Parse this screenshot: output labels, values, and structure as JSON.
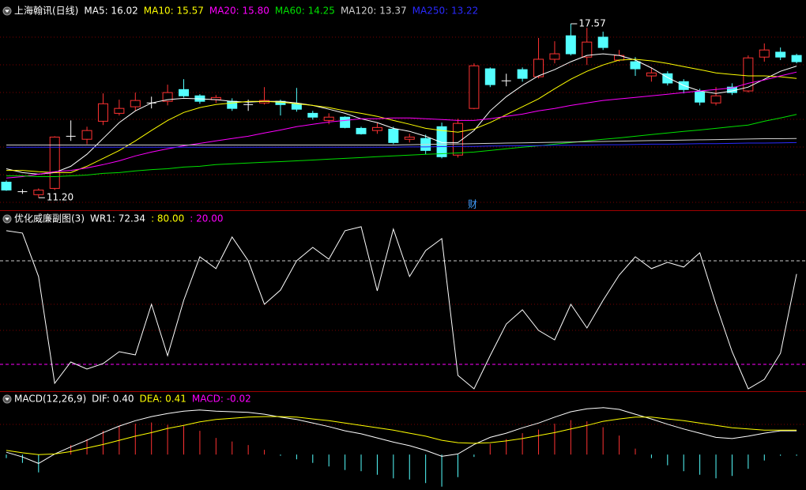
{
  "chart_data": [
    {
      "type": "candlestick",
      "title": "上海翰讯(日线)",
      "event_marker": "财",
      "ylim": [
        10.77,
        18.44
      ],
      "up_color": "#ff3232",
      "down_color": "#54ffff",
      "flat_color": "#ffffff",
      "open": [
        11.77,
        11.42,
        11.31,
        11.54,
        13.45,
        13.34,
        14.0,
        14.29,
        14.53,
        14.67,
        14.73,
        15.16,
        14.93,
        14.79,
        14.73,
        14.61,
        14.67,
        14.73,
        14.64,
        14.29,
        14.03,
        14.15,
        13.74,
        13.66,
        13.71,
        13.34,
        13.37,
        13.8,
        12.76,
        14.47,
        15.92,
        15.48,
        15.89,
        15.63,
        16.27,
        17.13,
        16.35,
        17.08,
        16.24,
        16.18,
        15.66,
        15.74,
        15.45,
        15.08,
        14.67,
        15.25,
        15.11,
        16.35,
        16.53,
        16.41
      ],
      "high": [
        11.83,
        11.51,
        11.54,
        13.45,
        14.03,
        13.8,
        15.02,
        14.79,
        15.05,
        14.9,
        15.34,
        15.54,
        14.99,
        14.96,
        14.84,
        14.79,
        15.25,
        14.79,
        15.22,
        14.38,
        14.29,
        14.18,
        13.8,
        13.95,
        13.8,
        13.54,
        13.51,
        13.95,
        14.09,
        16.12,
        15.97,
        15.74,
        15.97,
        17.05,
        16.93,
        17.57,
        17.42,
        17.28,
        16.61,
        16.35,
        15.97,
        15.83,
        15.54,
        15.19,
        15.25,
        15.39,
        16.41,
        16.85,
        16.7,
        16.47
      ],
      "low": [
        11.45,
        11.34,
        11.2,
        11.48,
        13.28,
        13.16,
        13.86,
        14.21,
        14.38,
        14.47,
        14.58,
        14.87,
        14.64,
        14.67,
        14.38,
        14.38,
        14.61,
        14.21,
        14.35,
        14.06,
        13.89,
        13.74,
        13.51,
        13.54,
        13.16,
        13.22,
        12.79,
        12.64,
        12.67,
        14.44,
        15.25,
        15.28,
        15.45,
        15.57,
        16.12,
        16.41,
        16.06,
        16.61,
        16.18,
        15.66,
        15.45,
        15.31,
        15.02,
        14.58,
        14.58,
        14.96,
        15.05,
        16.18,
        16.24,
        16.12
      ],
      "close": [
        11.48,
        11.42,
        11.48,
        13.42,
        13.45,
        13.66,
        14.64,
        14.47,
        14.76,
        14.67,
        15.05,
        14.93,
        14.73,
        14.87,
        14.47,
        14.61,
        14.76,
        14.61,
        14.44,
        14.15,
        14.15,
        13.77,
        13.54,
        13.77,
        13.22,
        13.42,
        12.93,
        12.7,
        13.92,
        16.03,
        15.34,
        15.48,
        15.57,
        16.27,
        16.47,
        16.47,
        16.9,
        16.7,
        16.41,
        15.92,
        15.77,
        15.4,
        15.16,
        14.7,
        14.93,
        15.05,
        16.32,
        16.61,
        16.35,
        16.18
      ],
      "annotations": [
        {
          "value": 17.57,
          "label": "17.57"
        },
        {
          "value": 11.2,
          "label": "11.20"
        }
      ],
      "series": [
        {
          "name": "MA5: 16.02",
          "color": "#ffffff",
          "values": [
            12.26,
            12.12,
            12.06,
            12.12,
            12.35,
            12.79,
            13.37,
            13.95,
            14.38,
            14.67,
            14.79,
            14.84,
            14.82,
            14.79,
            14.73,
            14.7,
            14.73,
            14.73,
            14.67,
            14.58,
            14.44,
            14.29,
            14.09,
            13.95,
            13.74,
            13.63,
            13.45,
            13.22,
            13.22,
            13.66,
            14.38,
            14.9,
            15.31,
            15.66,
            15.89,
            16.18,
            16.41,
            16.47,
            16.41,
            16.24,
            15.95,
            15.6,
            15.31,
            15.11,
            15.02,
            15.11,
            15.25,
            15.54,
            15.83,
            16.02
          ]
        },
        {
          "name": "MA10: 15.57",
          "color": "#ffff00",
          "values": [
            12.2,
            12.2,
            12.15,
            12.12,
            12.12,
            12.35,
            12.64,
            12.93,
            13.28,
            13.66,
            14.03,
            14.32,
            14.5,
            14.61,
            14.67,
            14.73,
            14.73,
            14.7,
            14.64,
            14.58,
            14.5,
            14.38,
            14.29,
            14.18,
            14.03,
            13.89,
            13.74,
            13.66,
            13.6,
            13.71,
            13.95,
            14.24,
            14.53,
            14.82,
            15.19,
            15.54,
            15.83,
            16.06,
            16.24,
            16.27,
            16.21,
            16.12,
            16.0,
            15.89,
            15.77,
            15.71,
            15.66,
            15.66,
            15.63,
            15.57
          ]
        },
        {
          "name": "MA20: 15.80",
          "color": "#ff00ff",
          "values": [
            11.92,
            11.97,
            12.06,
            12.15,
            12.2,
            12.29,
            12.41,
            12.55,
            12.73,
            12.87,
            12.99,
            13.1,
            13.19,
            13.28,
            13.37,
            13.45,
            13.57,
            13.68,
            13.8,
            13.89,
            13.97,
            14.03,
            14.09,
            14.09,
            14.12,
            14.12,
            14.09,
            14.06,
            14.03,
            14.03,
            14.09,
            14.18,
            14.26,
            14.38,
            14.47,
            14.58,
            14.67,
            14.76,
            14.82,
            14.87,
            14.93,
            14.99,
            15.05,
            15.11,
            15.16,
            15.22,
            15.39,
            15.51,
            15.66,
            15.8
          ]
        },
        {
          "name": "MA60: 14.25",
          "color": "#00e000",
          "values": [
            12.0,
            12.0,
            11.97,
            11.97,
            12.0,
            12.03,
            12.09,
            12.12,
            12.18,
            12.23,
            12.26,
            12.32,
            12.35,
            12.41,
            12.44,
            12.47,
            12.5,
            12.52,
            12.55,
            12.58,
            12.61,
            12.64,
            12.67,
            12.7,
            12.73,
            12.76,
            12.79,
            12.81,
            12.84,
            12.87,
            12.93,
            12.99,
            13.05,
            13.1,
            13.16,
            13.22,
            13.28,
            13.34,
            13.39,
            13.45,
            13.51,
            13.57,
            13.63,
            13.68,
            13.74,
            13.8,
            13.86,
            14.0,
            14.12,
            14.25
          ]
        },
        {
          "name": "MA120: 13.37",
          "color": "#d0d0d0",
          "values": [
            13.13,
            13.13,
            13.13,
            13.13,
            13.13,
            13.13,
            13.13,
            13.13,
            13.13,
            13.13,
            13.13,
            13.13,
            13.13,
            13.13,
            13.13,
            13.13,
            13.13,
            13.13,
            13.13,
            13.13,
            13.13,
            13.13,
            13.13,
            13.13,
            13.13,
            13.14,
            13.15,
            13.16,
            13.17,
            13.18,
            13.19,
            13.2,
            13.21,
            13.22,
            13.23,
            13.24,
            13.25,
            13.26,
            13.27,
            13.28,
            13.29,
            13.3,
            13.31,
            13.32,
            13.33,
            13.34,
            13.35,
            13.36,
            13.36,
            13.37
          ]
        },
        {
          "name": "MA250: 13.22",
          "color": "#2a2aff",
          "values": [
            13.05,
            13.05,
            13.05,
            13.05,
            13.05,
            13.05,
            13.05,
            13.05,
            13.05,
            13.05,
            13.05,
            13.05,
            13.05,
            13.05,
            13.05,
            13.05,
            13.05,
            13.05,
            13.05,
            13.05,
            13.05,
            13.05,
            13.05,
            13.05,
            13.05,
            13.06,
            13.06,
            13.07,
            13.08,
            13.08,
            13.09,
            13.1,
            13.1,
            13.11,
            13.12,
            13.12,
            13.13,
            13.14,
            13.14,
            13.15,
            13.16,
            13.16,
            13.17,
            13.18,
            13.18,
            13.19,
            13.2,
            13.2,
            13.21,
            13.22
          ]
        }
      ]
    },
    {
      "type": "line",
      "title": "优化威廉副图(3)",
      "ylim": [
        4.44,
        108.4
      ],
      "series": [
        {
          "name": "WR1: 72.34",
          "color": "#ffffff",
          "values": [
            97.44,
            96.06,
            70.87,
            9.02,
            21.39,
            17.27,
            20.48,
            27.35,
            25.52,
            54.83,
            25.06,
            57.12,
            82.32,
            75.45,
            93.77,
            80.03,
            54.83,
            63.08,
            80.03,
            87.81,
            80.94,
            97.44,
            99.73,
            62.62,
            98.35,
            70.87,
            85.98,
            92.86,
            13.6,
            5.82,
            25.06,
            43.38,
            51.63,
            39.72,
            34.22,
            54.83,
            41.09,
            57.12,
            71.78,
            82.32,
            75.45,
            79.12,
            76.37,
            84.61,
            54.83,
            27.35,
            5.82,
            11.31,
            26.43,
            72.34
          ]
        }
      ],
      "levels": [
        {
          "value": 80,
          "label": ": 80.00",
          "color": "#cccccc",
          "label_color": "#ffff00"
        },
        {
          "value": 20,
          "label": ": 20.00",
          "color": "#ff00ff",
          "label_color": "#ff00ff"
        }
      ]
    },
    {
      "type": "macd",
      "title": "MACD(12,26,9)",
      "ylim": [
        -0.57,
        1.04
      ],
      "series": [
        {
          "name": "DIF: 0.40",
          "color": "#ffffff",
          "values": [
            0.04,
            -0.04,
            -0.15,
            0.01,
            0.13,
            0.24,
            0.37,
            0.48,
            0.57,
            0.64,
            0.69,
            0.73,
            0.75,
            0.73,
            0.72,
            0.71,
            0.68,
            0.63,
            0.59,
            0.53,
            0.47,
            0.4,
            0.35,
            0.28,
            0.21,
            0.15,
            0.07,
            -0.03,
            0.01,
            0.17,
            0.29,
            0.36,
            0.45,
            0.53,
            0.63,
            0.72,
            0.77,
            0.79,
            0.76,
            0.68,
            0.6,
            0.51,
            0.43,
            0.36,
            0.29,
            0.27,
            0.31,
            0.36,
            0.4,
            0.4
          ]
        },
        {
          "name": "DEA: 0.41",
          "color": "#ffff00",
          "values": [
            0.07,
            0.03,
            0.0,
            0.01,
            0.05,
            0.11,
            0.17,
            0.24,
            0.31,
            0.37,
            0.44,
            0.49,
            0.55,
            0.59,
            0.61,
            0.63,
            0.64,
            0.64,
            0.63,
            0.6,
            0.57,
            0.53,
            0.49,
            0.45,
            0.41,
            0.36,
            0.31,
            0.24,
            0.2,
            0.19,
            0.2,
            0.23,
            0.27,
            0.32,
            0.37,
            0.43,
            0.49,
            0.56,
            0.6,
            0.63,
            0.63,
            0.6,
            0.57,
            0.53,
            0.49,
            0.45,
            0.43,
            0.41,
            0.41,
            0.41
          ]
        },
        {
          "name": "MACD: -0.02",
          "color": "#ff00ff",
          "kind": "bar",
          "up_color": "#ff3232",
          "down_color": "#54ffff",
          "values": [
            -0.06,
            -0.14,
            -0.3,
            0.0,
            0.16,
            0.26,
            0.4,
            0.48,
            0.52,
            0.54,
            0.5,
            0.48,
            0.4,
            0.28,
            0.22,
            0.16,
            0.08,
            -0.02,
            -0.08,
            -0.14,
            -0.2,
            -0.26,
            -0.28,
            -0.34,
            -0.4,
            -0.42,
            -0.48,
            -0.54,
            -0.38,
            -0.04,
            0.18,
            0.26,
            0.36,
            0.42,
            0.52,
            0.58,
            0.56,
            0.46,
            0.32,
            0.1,
            -0.06,
            -0.18,
            -0.28,
            -0.34,
            -0.4,
            -0.36,
            -0.24,
            -0.1,
            -0.02,
            -0.02
          ]
        }
      ]
    }
  ]
}
